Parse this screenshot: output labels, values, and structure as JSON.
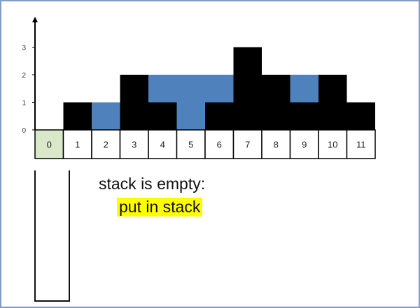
{
  "title": "",
  "y_axis": {
    "ticks": [
      "0",
      "1",
      "2",
      "3"
    ],
    "max": 3.5
  },
  "indices": [
    "0",
    "1",
    "2",
    "3",
    "4",
    "5",
    "6",
    "7",
    "8",
    "9",
    "10",
    "11"
  ],
  "highlighted_index": 0,
  "heights": [
    0,
    1,
    0,
    2,
    1,
    0,
    1,
    3,
    2,
    1,
    2,
    1
  ],
  "water": [
    0,
    0,
    1,
    0,
    1,
    2,
    1,
    0,
    0,
    1,
    0,
    0
  ],
  "colors": {
    "bar": "#000000",
    "water": "#4f81bd",
    "highlight": "#d8e8c8",
    "frame": "#7f9dc6",
    "action_highlight": "#ffff00"
  },
  "stack": [],
  "status": "stack is empty:",
  "action": "put in stack"
}
